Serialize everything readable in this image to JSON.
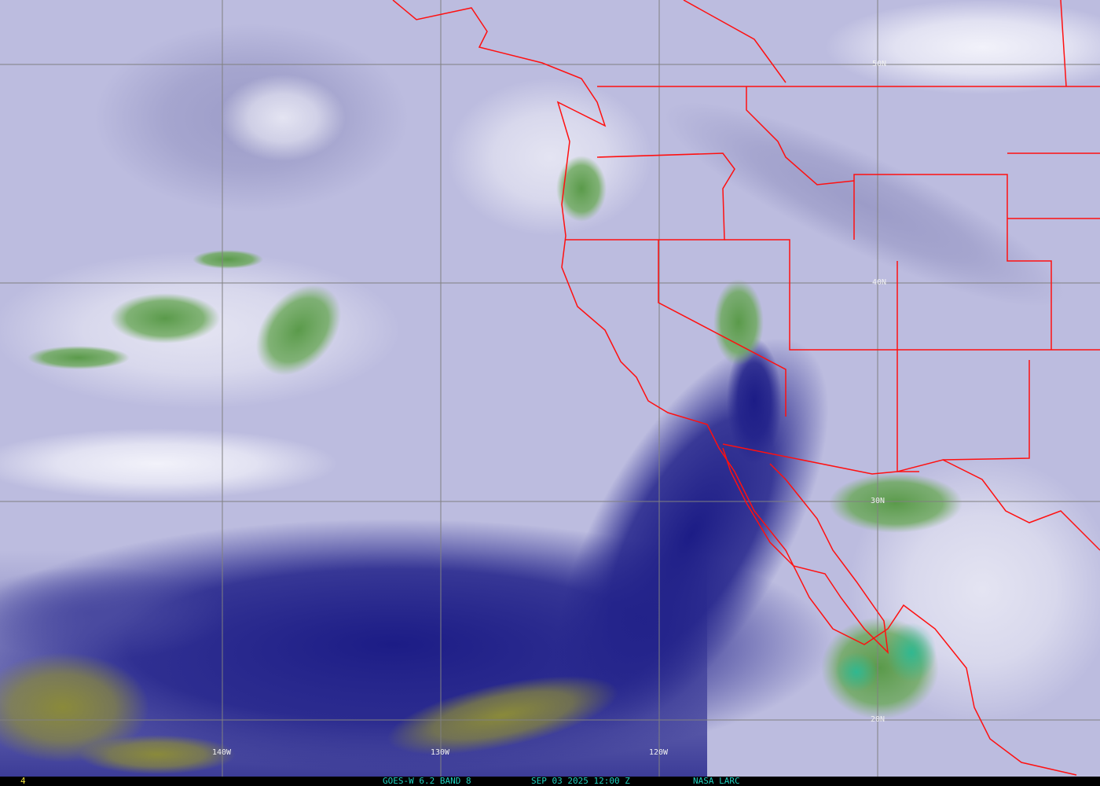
{
  "map": {
    "type": "satellite water vapor imagery",
    "grid": {
      "latitude_labels": [
        "50N",
        "40N",
        "30N",
        "20N"
      ],
      "longitude_labels": [
        "140W",
        "130W",
        "120W"
      ]
    },
    "colors": {
      "background_lavender": "#bcbcdf",
      "dry_navy": "#1c1c86",
      "moist_white": "#f2f2fa",
      "cloud_green": "#5a9a4a",
      "olive": "#8a8a3a",
      "borders": "#ff1010",
      "grid": "#808080"
    }
  },
  "footer": {
    "frame_number": "4",
    "satellite": "GOES-W 6.2 BAND 8",
    "datetime": "SEP 03 2025 12:00 Z",
    "credit": "NASA LARC"
  }
}
